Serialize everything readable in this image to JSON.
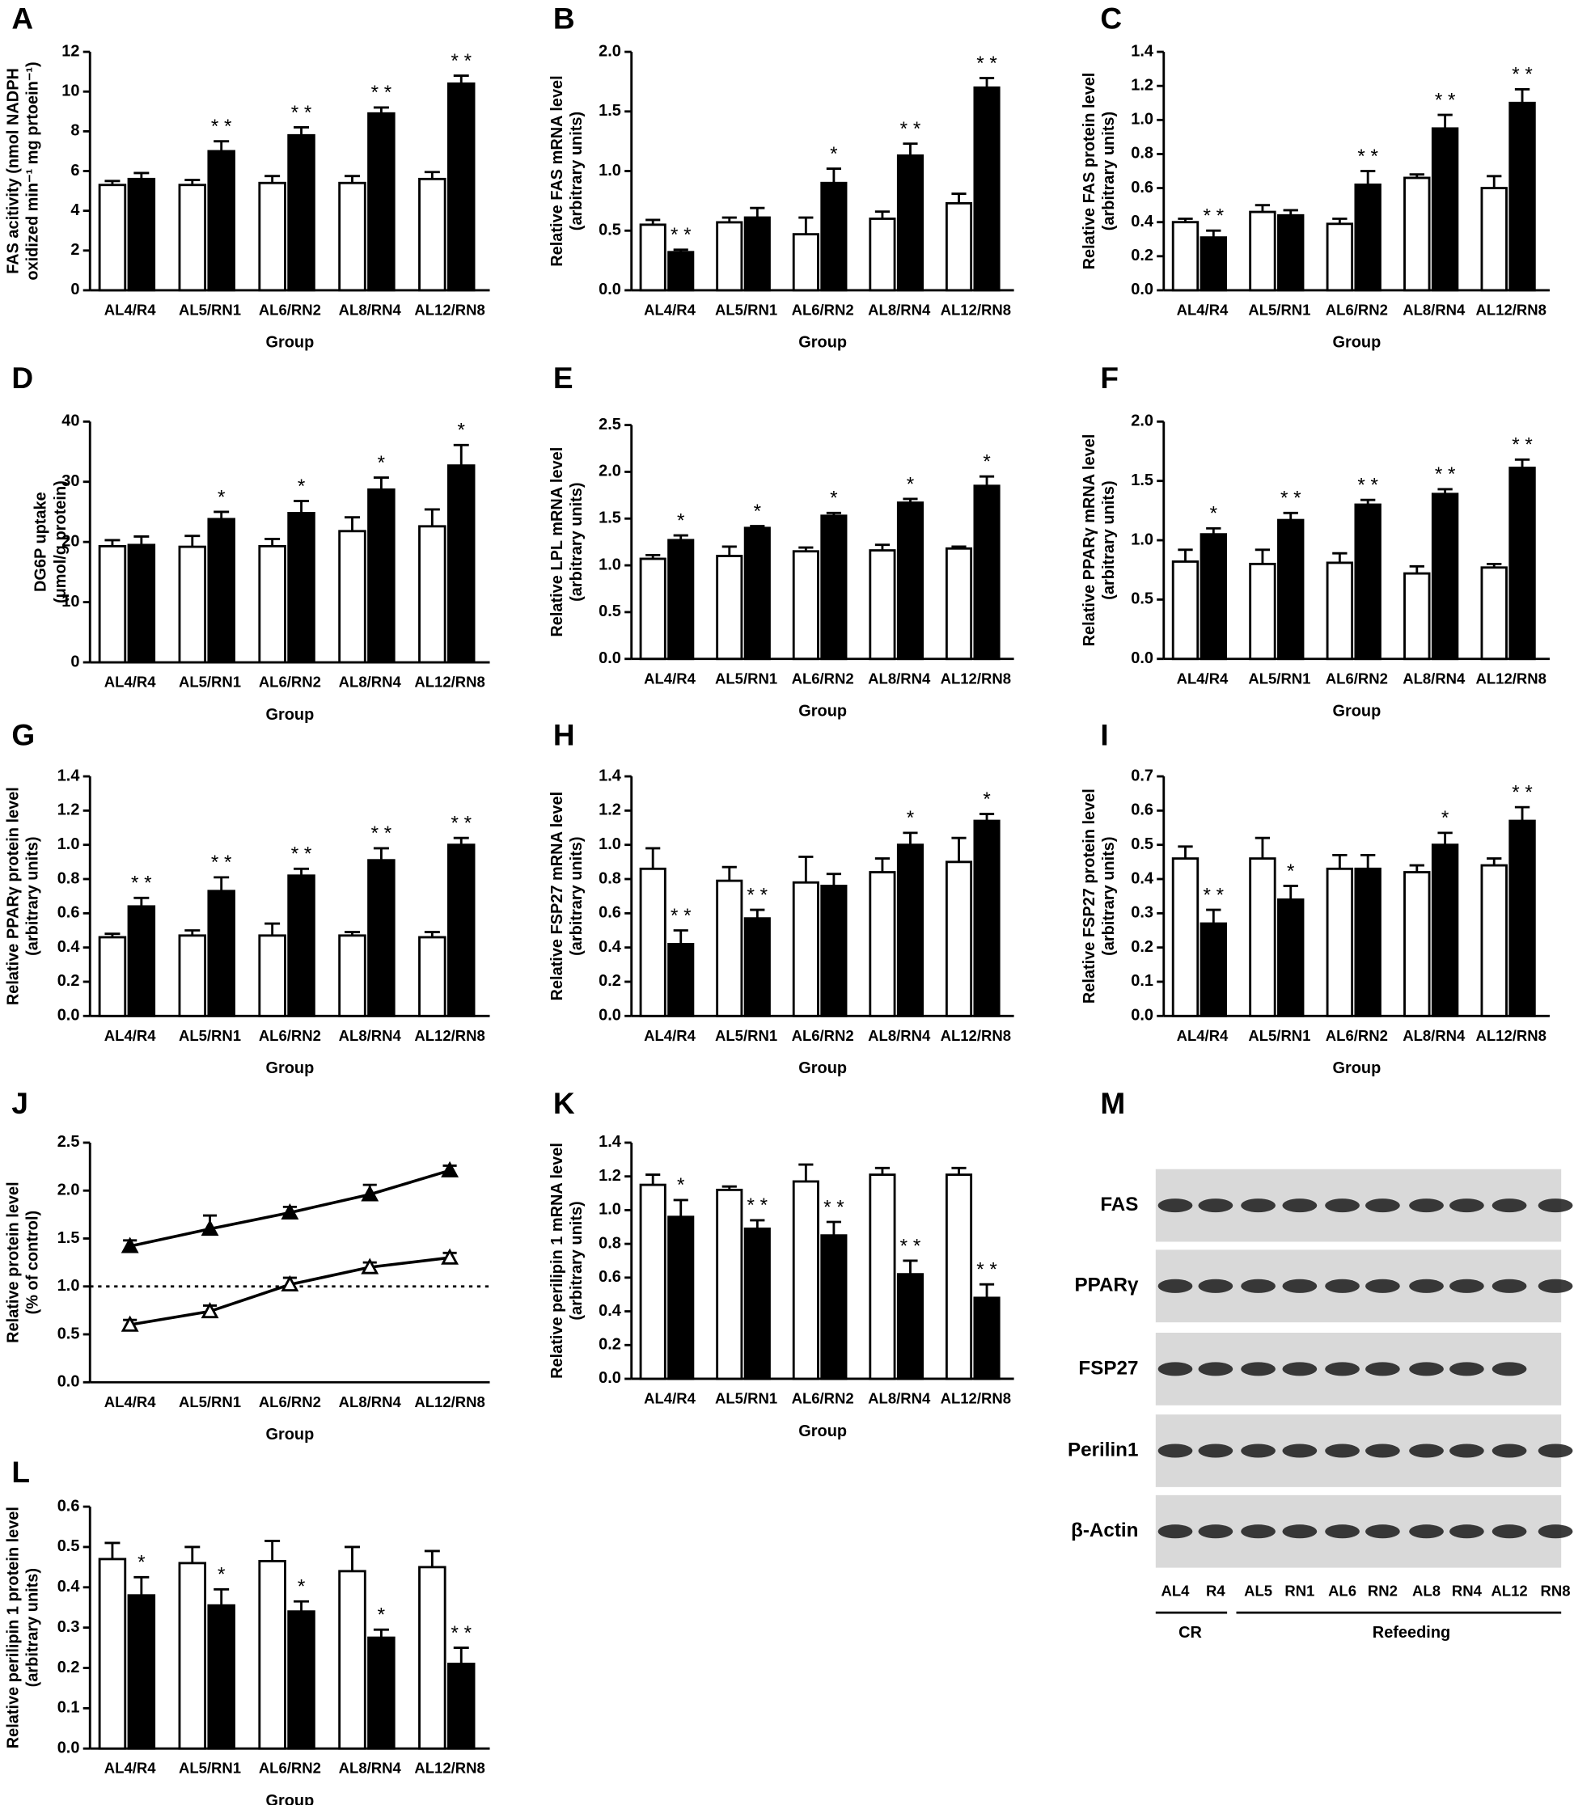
{
  "chart_data": [
    {
      "type": "bar",
      "panel": "A",
      "ylabel": [
        "FAS acitivity (nmol NADPH",
        "oxidized min⁻¹ mg prtoein⁻¹)"
      ],
      "xlabel": "Group",
      "categories": [
        "AL4/R4",
        "AL5/RN1",
        "AL6/RN2",
        "AL8/RN4",
        "AL12/RN8"
      ],
      "series": [
        {
          "color": "#ffffff",
          "edgecolor": "#000000",
          "values": [
            5.3,
            5.3,
            5.4,
            5.4,
            5.6
          ],
          "errors": [
            0.2,
            0.25,
            0.35,
            0.35,
            0.35
          ]
        },
        {
          "color": "#000000",
          "edgecolor": "#000000",
          "values": [
            5.6,
            7.0,
            7.8,
            8.9,
            10.4
          ],
          "errors": [
            0.3,
            0.5,
            0.4,
            0.3,
            0.4
          ],
          "annotations": [
            null,
            "* *",
            "* *",
            "* *",
            "* *"
          ]
        }
      ],
      "ylim": [
        0,
        12
      ],
      "yticks": [
        0,
        2,
        4,
        6,
        8,
        10,
        12
      ]
    },
    {
      "type": "bar",
      "panel": "B",
      "ylabel": [
        "Relative FAS mRNA level",
        "(arbitrary units)"
      ],
      "xlabel": "Group",
      "categories": [
        "AL4/R4",
        "AL5/RN1",
        "AL6/RN2",
        "AL8/RN4",
        "AL12/RN8"
      ],
      "series": [
        {
          "color": "#ffffff",
          "edgecolor": "#000000",
          "values": [
            0.55,
            0.57,
            0.47,
            0.6,
            0.73
          ],
          "errors": [
            0.04,
            0.04,
            0.14,
            0.06,
            0.08
          ]
        },
        {
          "color": "#000000",
          "edgecolor": "#000000",
          "values": [
            0.32,
            0.61,
            0.9,
            1.13,
            1.7
          ],
          "errors": [
            0.02,
            0.08,
            0.12,
            0.1,
            0.08
          ],
          "annotations": [
            "* *",
            null,
            "*",
            "* *",
            "* *"
          ]
        }
      ],
      "ylim": [
        0,
        2
      ],
      "yticks": [
        {
          "value": 0,
          "label": "0.0"
        },
        {
          "value": 0.5,
          "label": "0.5"
        },
        {
          "value": 1,
          "label": "1.0"
        },
        {
          "value": 1.5,
          "label": "1.5"
        },
        {
          "value": 2,
          "label": "2.0"
        }
      ]
    },
    {
      "type": "bar",
      "panel": "C",
      "ylabel": [
        "Relative FAS protein level",
        "(arbitrary units)"
      ],
      "xlabel": "Group",
      "categories": [
        "AL4/R4",
        "AL5/RN1",
        "AL6/RN2",
        "AL8/RN4",
        "AL12/RN8"
      ],
      "series": [
        {
          "color": "#ffffff",
          "edgecolor": "#000000",
          "values": [
            0.4,
            0.46,
            0.39,
            0.66,
            0.6
          ],
          "errors": [
            0.02,
            0.04,
            0.03,
            0.02,
            0.07
          ]
        },
        {
          "color": "#000000",
          "edgecolor": "#000000",
          "values": [
            0.31,
            0.44,
            0.62,
            0.95,
            1.1
          ],
          "errors": [
            0.04,
            0.03,
            0.08,
            0.08,
            0.08
          ],
          "annotations": [
            "* *",
            null,
            "* *",
            "* *",
            "* *"
          ]
        }
      ],
      "ylim": [
        0,
        1.4
      ],
      "yticks": [
        {
          "value": 0,
          "label": "0.0"
        },
        {
          "value": 0.2,
          "label": "0.2"
        },
        {
          "value": 0.4,
          "label": "0.4"
        },
        {
          "value": 0.6,
          "label": "0.6"
        },
        {
          "value": 0.8,
          "label": "0.8"
        },
        {
          "value": 1,
          "label": "1.0"
        },
        {
          "value": 1.2,
          "label": "1.2"
        },
        {
          "value": 1.4,
          "label": "1.4"
        }
      ]
    },
    {
      "type": "bar",
      "panel": "D",
      "ylabel": [
        "DG6P uptake",
        "(μmol/g protein)"
      ],
      "xlabel": "Group",
      "categories": [
        "AL4/R4",
        "AL5/RN1",
        "AL6/RN2",
        "AL8/RN4",
        "AL12/RN8"
      ],
      "series": [
        {
          "color": "#ffffff",
          "edgecolor": "#000000",
          "values": [
            19.3,
            19.2,
            19.3,
            21.8,
            22.6
          ],
          "errors": [
            1,
            1.8,
            1.2,
            2.3,
            2.8
          ]
        },
        {
          "color": "#000000",
          "edgecolor": "#000000",
          "values": [
            19.5,
            23.8,
            24.8,
            28.7,
            32.7
          ],
          "errors": [
            1.4,
            1.2,
            2,
            2,
            3.4
          ],
          "annotations": [
            null,
            "*",
            "*",
            "*",
            "*"
          ]
        }
      ],
      "ylim": [
        0,
        40
      ],
      "yticks": [
        0,
        10,
        20,
        30,
        40
      ]
    },
    {
      "type": "bar",
      "panel": "E",
      "ylabel": [
        "Relative LPL mRNA level",
        "(arbitrary units)"
      ],
      "xlabel": "Group",
      "categories": [
        "AL4/R4",
        "AL5/RN1",
        "AL6/RN2",
        "AL8/RN4",
        "AL12/RN8"
      ],
      "series": [
        {
          "color": "#ffffff",
          "edgecolor": "#000000",
          "values": [
            1.07,
            1.1,
            1.15,
            1.16,
            1.18
          ],
          "errors": [
            0.04,
            0.1,
            0.04,
            0.06,
            0.02
          ]
        },
        {
          "color": "#000000",
          "edgecolor": "#000000",
          "values": [
            1.27,
            1.4,
            1.53,
            1.67,
            1.85
          ],
          "errors": [
            0.05,
            0.02,
            0.03,
            0.04,
            0.1
          ],
          "annotations": [
            "*",
            "*",
            "*",
            "*",
            "*"
          ]
        }
      ],
      "ylim": [
        0,
        2.5
      ],
      "yticks": [
        {
          "value": 0,
          "label": "0.0"
        },
        {
          "value": 0.5,
          "label": "0.5"
        },
        {
          "value": 1,
          "label": "1.0"
        },
        {
          "value": 1.5,
          "label": "1.5"
        },
        {
          "value": 2,
          "label": "2.0"
        },
        {
          "value": 2.5,
          "label": "2.5"
        }
      ]
    },
    {
      "type": "bar",
      "panel": "F",
      "ylabel": [
        "Relative PPARγ mRNA level",
        "(arbitrary units)"
      ],
      "xlabel": "Group",
      "categories": [
        "AL4/R4",
        "AL5/RN1",
        "AL6/RN2",
        "AL8/RN4",
        "AL12/RN8"
      ],
      "series": [
        {
          "color": "#ffffff",
          "edgecolor": "#000000",
          "values": [
            0.82,
            0.8,
            0.81,
            0.72,
            0.77
          ],
          "errors": [
            0.1,
            0.12,
            0.08,
            0.06,
            0.03
          ]
        },
        {
          "color": "#000000",
          "edgecolor": "#000000",
          "values": [
            1.05,
            1.17,
            1.3,
            1.39,
            1.61
          ],
          "errors": [
            0.05,
            0.06,
            0.04,
            0.04,
            0.07
          ],
          "annotations": [
            "*",
            "* *",
            "* *",
            "* *",
            "* *"
          ]
        }
      ],
      "ylim": [
        0,
        2
      ],
      "yticks": [
        {
          "value": 0,
          "label": "0.0"
        },
        {
          "value": 0.5,
          "label": "0.5"
        },
        {
          "value": 1,
          "label": "1.0"
        },
        {
          "value": 1.5,
          "label": "1.5"
        },
        {
          "value": 2,
          "label": "2.0"
        }
      ]
    },
    {
      "type": "bar",
      "panel": "G",
      "ylabel": [
        "Relative PPARγ protein level",
        "(arbitrary units)"
      ],
      "xlabel": "Group",
      "categories": [
        "AL4/R4",
        "AL5/RN1",
        "AL6/RN2",
        "AL8/RN4",
        "AL12/RN8"
      ],
      "series": [
        {
          "color": "#ffffff",
          "edgecolor": "#000000",
          "values": [
            0.46,
            0.47,
            0.47,
            0.47,
            0.46
          ],
          "errors": [
            0.02,
            0.03,
            0.07,
            0.02,
            0.03
          ]
        },
        {
          "color": "#000000",
          "edgecolor": "#000000",
          "values": [
            0.64,
            0.73,
            0.82,
            0.91,
            1.0
          ],
          "errors": [
            0.05,
            0.08,
            0.04,
            0.07,
            0.04
          ],
          "annotations": [
            "* *",
            "* *",
            "* *",
            "* *",
            "* *"
          ]
        }
      ],
      "ylim": [
        0,
        1.4
      ],
      "yticks": [
        {
          "value": 0,
          "label": "0.0"
        },
        {
          "value": 0.2,
          "label": "0.2"
        },
        {
          "value": 0.4,
          "label": "0.4"
        },
        {
          "value": 0.6,
          "label": "0.6"
        },
        {
          "value": 0.8,
          "label": "0.8"
        },
        {
          "value": 1,
          "label": "1.0"
        },
        {
          "value": 1.2,
          "label": "1.2"
        },
        {
          "value": 1.4,
          "label": "1.4"
        }
      ]
    },
    {
      "type": "bar",
      "panel": "H",
      "ylabel": [
        "Relative FSP27 mRNA level",
        "(arbitrary units)"
      ],
      "xlabel": "Group",
      "categories": [
        "AL4/R4",
        "AL5/RN1",
        "AL6/RN2",
        "AL8/RN4",
        "AL12/RN8"
      ],
      "series": [
        {
          "color": "#ffffff",
          "edgecolor": "#000000",
          "values": [
            0.86,
            0.79,
            0.78,
            0.84,
            0.9
          ],
          "errors": [
            0.12,
            0.08,
            0.15,
            0.08,
            0.14
          ]
        },
        {
          "color": "#000000",
          "edgecolor": "#000000",
          "values": [
            0.42,
            0.57,
            0.76,
            1.0,
            1.14
          ],
          "errors": [
            0.08,
            0.05,
            0.07,
            0.07,
            0.04
          ],
          "annotations": [
            "* *",
            "* *",
            null,
            "*",
            "*"
          ]
        }
      ],
      "ylim": [
        0,
        1.4
      ],
      "yticks": [
        {
          "value": 0,
          "label": "0.0"
        },
        {
          "value": 0.2,
          "label": "0.2"
        },
        {
          "value": 0.4,
          "label": "0.4"
        },
        {
          "value": 0.6,
          "label": "0.6"
        },
        {
          "value": 0.8,
          "label": "0.8"
        },
        {
          "value": 1,
          "label": "1.0"
        },
        {
          "value": 1.2,
          "label": "1.2"
        },
        {
          "value": 1.4,
          "label": "1.4"
        }
      ]
    },
    {
      "type": "bar",
      "panel": "I",
      "ylabel": [
        "Relative FSP27 protein level",
        "(arbitrary units)"
      ],
      "xlabel": "Group",
      "categories": [
        "AL4/R4",
        "AL5/RN1",
        "AL6/RN2",
        "AL8/RN4",
        "AL12/RN8"
      ],
      "series": [
        {
          "color": "#ffffff",
          "edgecolor": "#000000",
          "values": [
            0.46,
            0.46,
            0.43,
            0.42,
            0.44
          ],
          "errors": [
            0.035,
            0.06,
            0.04,
            0.02,
            0.02
          ]
        },
        {
          "color": "#000000",
          "edgecolor": "#000000",
          "values": [
            0.27,
            0.34,
            0.43,
            0.5,
            0.57
          ],
          "errors": [
            0.04,
            0.04,
            0.04,
            0.035,
            0.04
          ],
          "annotations": [
            "* *",
            "*",
            null,
            "*",
            "* *"
          ]
        }
      ],
      "ylim": [
        0,
        0.7
      ],
      "yticks": [
        {
          "value": 0,
          "label": "0.0"
        },
        {
          "value": 0.1,
          "label": "0.1"
        },
        {
          "value": 0.2,
          "label": "0.2"
        },
        {
          "value": 0.3,
          "label": "0.3"
        },
        {
          "value": 0.4,
          "label": "0.4"
        },
        {
          "value": 0.5,
          "label": "0.5"
        },
        {
          "value": 0.6,
          "label": "0.6"
        },
        {
          "value": 0.7,
          "label": "0.7"
        }
      ]
    },
    {
      "type": "line",
      "panel": "J",
      "ylabel": [
        "Relative protein level",
        "(% of control)"
      ],
      "xlabel": "Group",
      "categories": [
        "AL4/R4",
        "AL5/RN1",
        "AL6/RN2",
        "AL8/RN4",
        "AL12/RN8"
      ],
      "series": [
        {
          "color": "#000000",
          "marker": "triangle",
          "values": [
            1.42,
            1.6,
            1.77,
            1.96,
            2.21
          ],
          "errors": [
            0.06,
            0.14,
            0.06,
            0.1,
            0.05
          ]
        },
        {
          "color": "#ffffff",
          "marker": "triangle",
          "values": [
            0.6,
            0.74,
            1.02,
            1.2,
            1.3
          ],
          "errors": [
            0.05,
            0.06,
            0.07,
            0.05,
            0.05
          ]
        }
      ],
      "reference_line": 1,
      "ylim": [
        0,
        2.5
      ],
      "yticks": [
        {
          "value": 0,
          "label": "0.0"
        },
        {
          "value": 0.5,
          "label": "0.5"
        },
        {
          "value": 1,
          "label": "1.0"
        },
        {
          "value": 1.5,
          "label": "1.5"
        },
        {
          "value": 2,
          "label": "2.0"
        },
        {
          "value": 2.5,
          "label": "2.5"
        }
      ]
    },
    {
      "type": "bar",
      "panel": "K",
      "ylabel": [
        "Relative perilipin 1 mRNA level",
        "(arbitrary units)"
      ],
      "xlabel": "Group",
      "categories": [
        "AL4/R4",
        "AL5/RN1",
        "AL6/RN2",
        "AL8/RN4",
        "AL12/RN8"
      ],
      "series": [
        {
          "color": "#ffffff",
          "edgecolor": "#000000",
          "values": [
            1.15,
            1.12,
            1.17,
            1.21,
            1.21
          ],
          "errors": [
            0.06,
            0.02,
            0.1,
            0.04,
            0.04
          ]
        },
        {
          "color": "#000000",
          "edgecolor": "#000000",
          "values": [
            0.96,
            0.89,
            0.85,
            0.62,
            0.48
          ],
          "errors": [
            0.1,
            0.05,
            0.08,
            0.08,
            0.08
          ],
          "annotations": [
            "*",
            "* *",
            "* *",
            "* *",
            "* *"
          ]
        }
      ],
      "ylim": [
        0,
        1.4
      ],
      "yticks": [
        {
          "value": 0,
          "label": "0.0"
        },
        {
          "value": 0.2,
          "label": "0.2"
        },
        {
          "value": 0.4,
          "label": "0.4"
        },
        {
          "value": 0.6,
          "label": "0.6"
        },
        {
          "value": 0.8,
          "label": "0.8"
        },
        {
          "value": 1,
          "label": "1.0"
        },
        {
          "value": 1.2,
          "label": "1.2"
        },
        {
          "value": 1.4,
          "label": "1.4"
        }
      ]
    },
    {
      "type": "bar",
      "panel": "L",
      "ylabel": [
        "Relative perilipin 1 protein level",
        "(arbitrary units)"
      ],
      "xlabel": "Group",
      "categories": [
        "AL4/R4",
        "AL5/RN1",
        "AL6/RN2",
        "AL8/RN4",
        "AL12/RN8"
      ],
      "series": [
        {
          "color": "#ffffff",
          "edgecolor": "#000000",
          "values": [
            0.47,
            0.46,
            0.465,
            0.44,
            0.45
          ],
          "errors": [
            0.04,
            0.04,
            0.05,
            0.06,
            0.04
          ]
        },
        {
          "color": "#000000",
          "edgecolor": "#000000",
          "values": [
            0.38,
            0.355,
            0.34,
            0.275,
            0.21
          ],
          "errors": [
            0.045,
            0.04,
            0.025,
            0.02,
            0.04
          ],
          "annotations": [
            "*",
            "*",
            "*",
            "*",
            "* *"
          ]
        }
      ],
      "ylim": [
        0,
        0.6
      ],
      "yticks": [
        {
          "value": 0,
          "label": "0.0"
        },
        {
          "value": 0.1,
          "label": "0.1"
        },
        {
          "value": 0.2,
          "label": "0.2"
        },
        {
          "value": 0.3,
          "label": "0.3"
        },
        {
          "value": 0.4,
          "label": "0.4"
        },
        {
          "value": 0.5,
          "label": "0.5"
        },
        {
          "value": 0.6,
          "label": "0.6"
        }
      ]
    }
  ],
  "blot": {
    "panel": "M",
    "rows": [
      "FAS",
      "PPARγ",
      "FSP27",
      "Perilin1",
      "β-Actin"
    ],
    "lanes": [
      "AL4",
      "R4",
      "AL5",
      "RN1",
      "AL6",
      "RN2",
      "AL8",
      "RN4",
      "AL12",
      "RN8"
    ],
    "groups": [
      "CR",
      "Refeeding"
    ]
  }
}
